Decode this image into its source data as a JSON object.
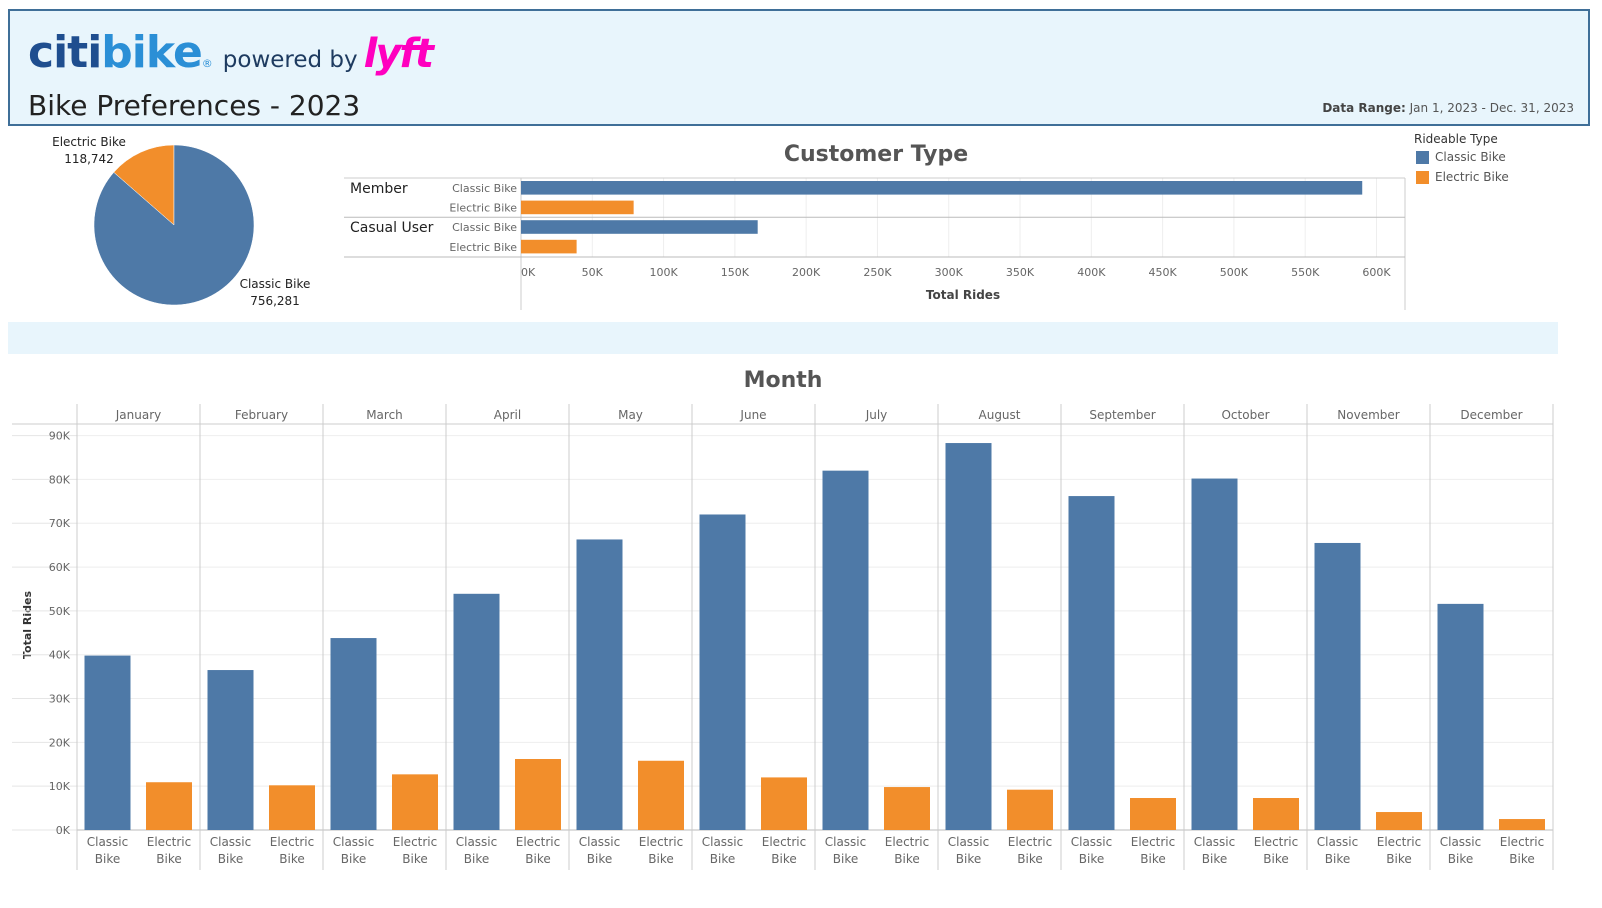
{
  "header": {
    "logo": {
      "citi": "citi",
      "bike": "bike",
      "reg": "®",
      "powered_by": "powered by",
      "lyft": "lyft"
    },
    "title": "Bike Preferences - 2023",
    "date_range_label": "Data Range:",
    "date_range_value": "Jan 1, 2023 - Dec. 31, 2023"
  },
  "colors": {
    "classic": "#4e79a7",
    "electric": "#f28e2b"
  },
  "legend": {
    "title": "Rideable Type",
    "items": [
      "Classic Bike",
      "Electric Bike"
    ]
  },
  "chart_data": [
    {
      "type": "pie",
      "labels": [
        "Electric Bike",
        "Classic Bike"
      ],
      "value_labels": [
        "118,742",
        "756,281"
      ],
      "values": [
        118742,
        756281
      ]
    },
    {
      "type": "bar",
      "orientation": "horizontal",
      "title": "Customer Type",
      "xlabel": "Total Rides",
      "groups": [
        {
          "name": "Member",
          "bars": [
            {
              "type": "Classic Bike",
              "value": 590000
            },
            {
              "type": "Electric Bike",
              "value": 79000
            }
          ]
        },
        {
          "name": "Casual User",
          "bars": [
            {
              "type": "Classic Bike",
              "value": 166000
            },
            {
              "type": "Electric Bike",
              "value": 39000
            }
          ]
        }
      ],
      "xlim": [
        0,
        620000
      ],
      "xticks": [
        0,
        50000,
        100000,
        150000,
        200000,
        250000,
        300000,
        350000,
        400000,
        450000,
        500000,
        550000,
        600000
      ],
      "xtick_labels": [
        "0K",
        "50K",
        "100K",
        "150K",
        "200K",
        "250K",
        "300K",
        "350K",
        "400K",
        "450K",
        "500K",
        "550K",
        "600K"
      ]
    },
    {
      "type": "bar",
      "title": "Month",
      "ylabel": "Total Rides",
      "categories": [
        "January",
        "February",
        "March",
        "April",
        "May",
        "June",
        "July",
        "August",
        "September",
        "October",
        "November",
        "December"
      ],
      "sub_categories": [
        [
          "Classic",
          "Bike"
        ],
        [
          "Electric",
          "Bike"
        ]
      ],
      "series": [
        {
          "name": "Classic Bike",
          "values": [
            39800,
            36500,
            43800,
            53900,
            66300,
            72000,
            82000,
            88300,
            76200,
            80200,
            65500,
            51600
          ]
        },
        {
          "name": "Electric Bike",
          "values": [
            10900,
            10200,
            12700,
            16200,
            15800,
            12000,
            9800,
            9200,
            7300,
            7300,
            4100,
            2500
          ]
        }
      ],
      "ylim": [
        0,
        92000
      ],
      "yticks": [
        0,
        10000,
        20000,
        30000,
        40000,
        50000,
        60000,
        70000,
        80000,
        90000
      ],
      "ytick_labels": [
        "0K",
        "10K",
        "20K",
        "30K",
        "40K",
        "50K",
        "60K",
        "70K",
        "80K",
        "90K"
      ]
    }
  ]
}
